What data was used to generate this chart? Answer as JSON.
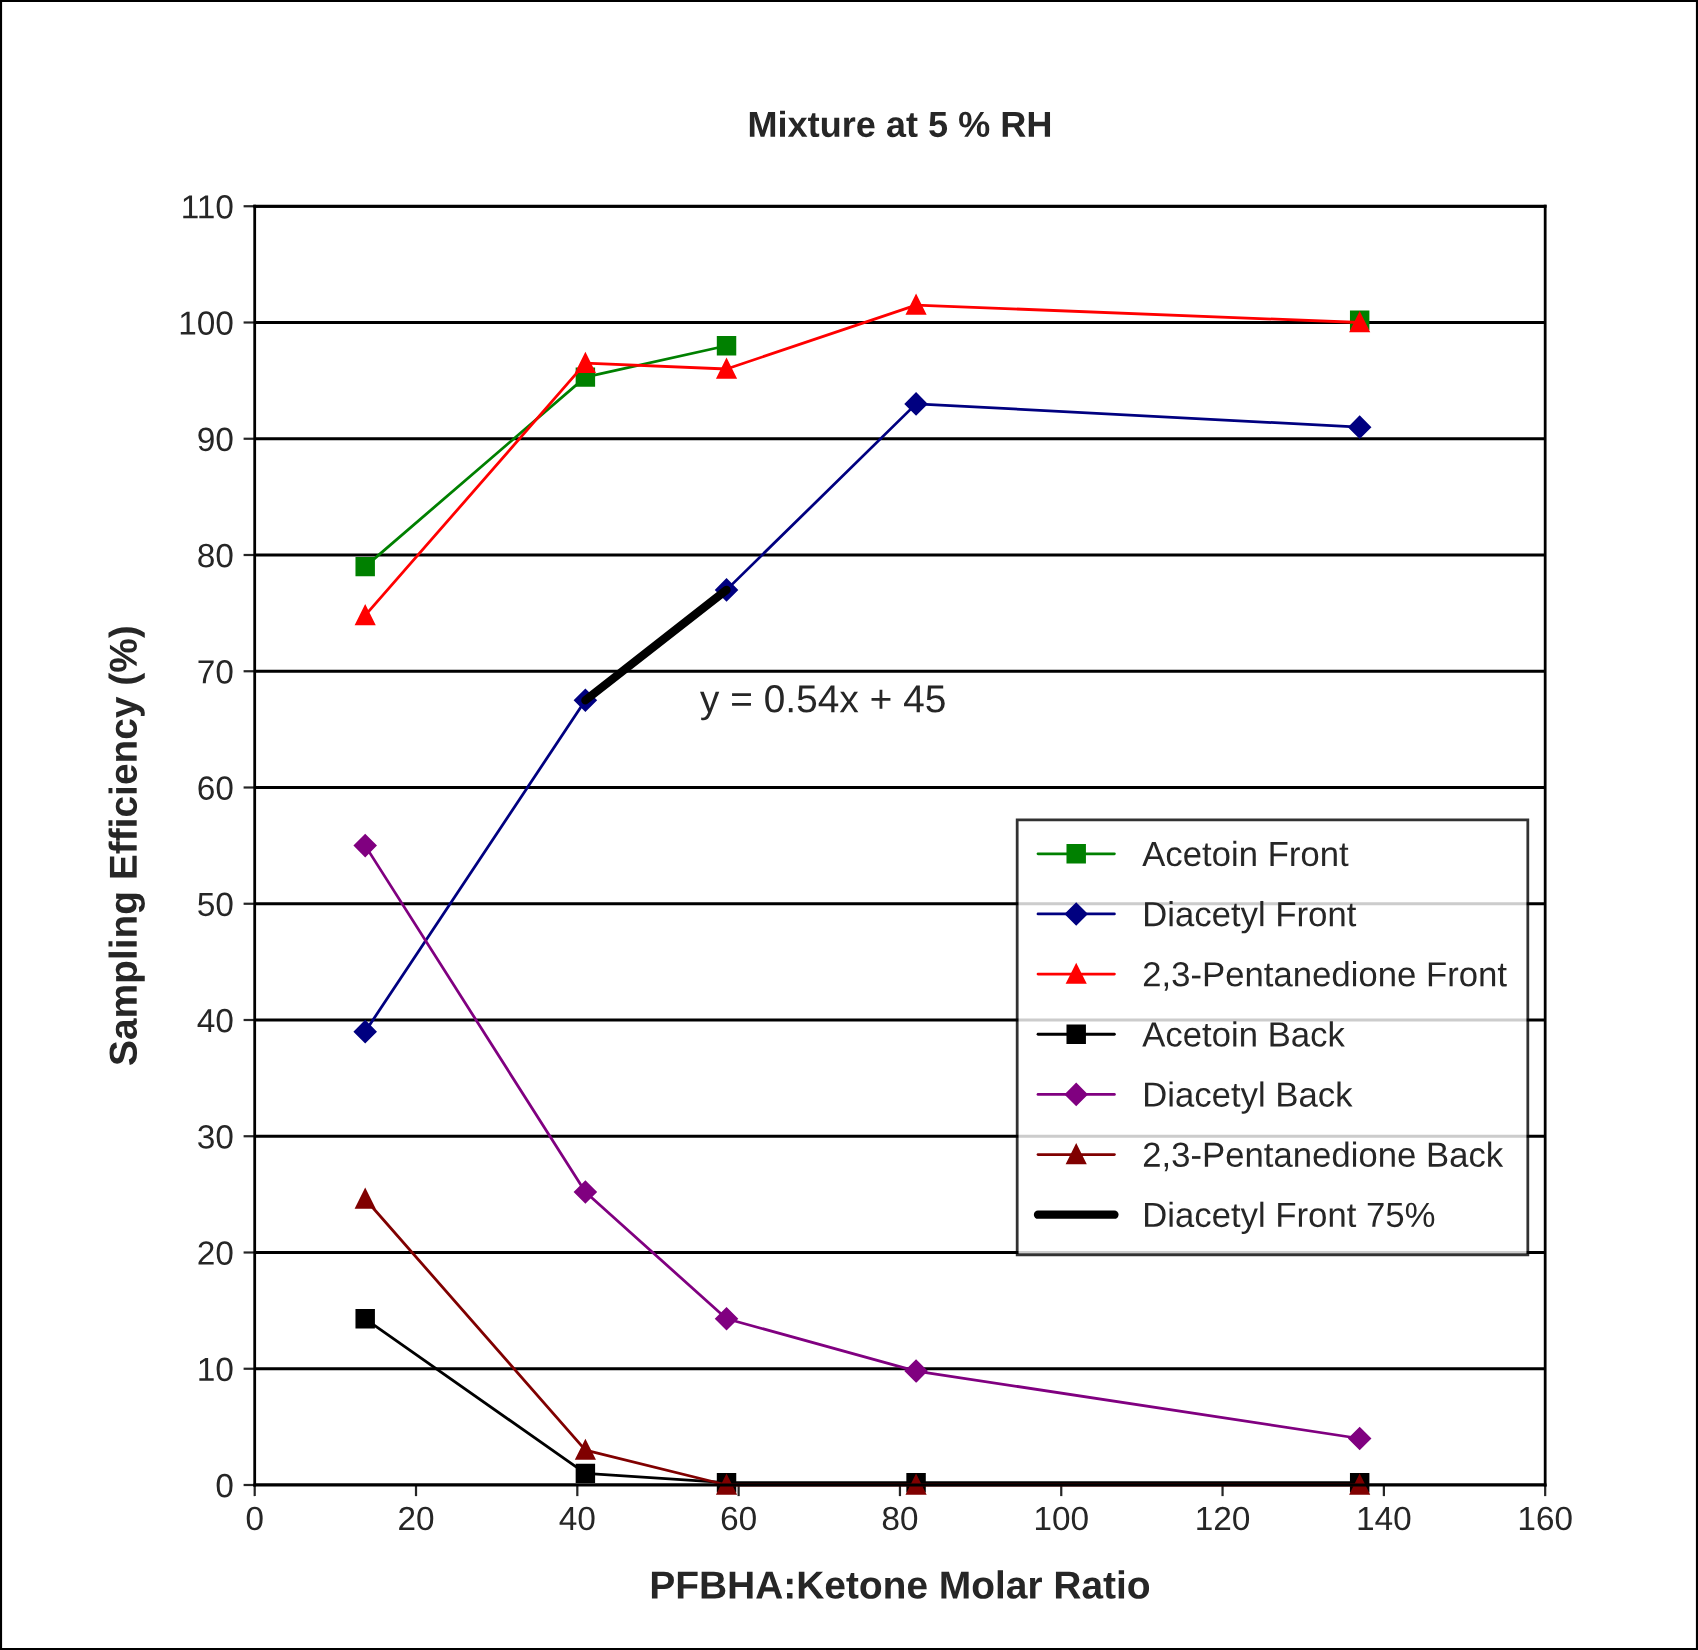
{
  "chart_data": {
    "type": "line",
    "title": "Mixture at 5 % RH",
    "xlabel": "PFBHA:Ketone Molar Ratio",
    "ylabel": "Sampling Efficiency (%)",
    "x": [
      13.7,
      41,
      58.5,
      82,
      137
    ],
    "series": [
      {
        "name": "Acetoin Front",
        "color": "#008000",
        "marker": "square",
        "values": [
          79,
          95.3,
          98,
          null,
          100.2
        ]
      },
      {
        "name": "Diacetyl Front",
        "color": "#000080",
        "marker": "diamond",
        "values": [
          39,
          67.5,
          77,
          93,
          91
        ]
      },
      {
        "name": "2,3-Pentanedione Front",
        "color": "#ff0000",
        "marker": "triangle",
        "values": [
          74.8,
          96.5,
          96,
          101.5,
          100
        ]
      },
      {
        "name": "Acetoin Back",
        "color": "#000000",
        "marker": "square",
        "values": [
          14.3,
          1,
          0.2,
          0.2,
          0.2
        ]
      },
      {
        "name": "Diacetyl Back",
        "color": "#800080",
        "marker": "diamond",
        "values": [
          55,
          25.2,
          14.3,
          9.8,
          4
        ]
      },
      {
        "name": "2,3-Pentanedione Back",
        "color": "#800000",
        "marker": "triangle",
        "values": [
          24.6,
          3,
          0,
          0,
          0
        ]
      },
      {
        "name": "Diacetyl Front 75%",
        "color": "#000000",
        "marker": "none",
        "x": [
          41,
          58.5
        ],
        "values": [
          67.5,
          77
        ]
      }
    ],
    "annotations": [
      "y = 0.54x + 45"
    ],
    "xlim": [
      0,
      160
    ],
    "xticks": [
      0,
      20,
      40,
      60,
      80,
      100,
      120,
      140,
      160
    ],
    "ylim": [
      0,
      110
    ],
    "yticks": [
      0,
      10,
      20,
      30,
      40,
      50,
      60,
      70,
      80,
      90,
      100,
      110
    ],
    "grid": "y",
    "legend": "right"
  }
}
